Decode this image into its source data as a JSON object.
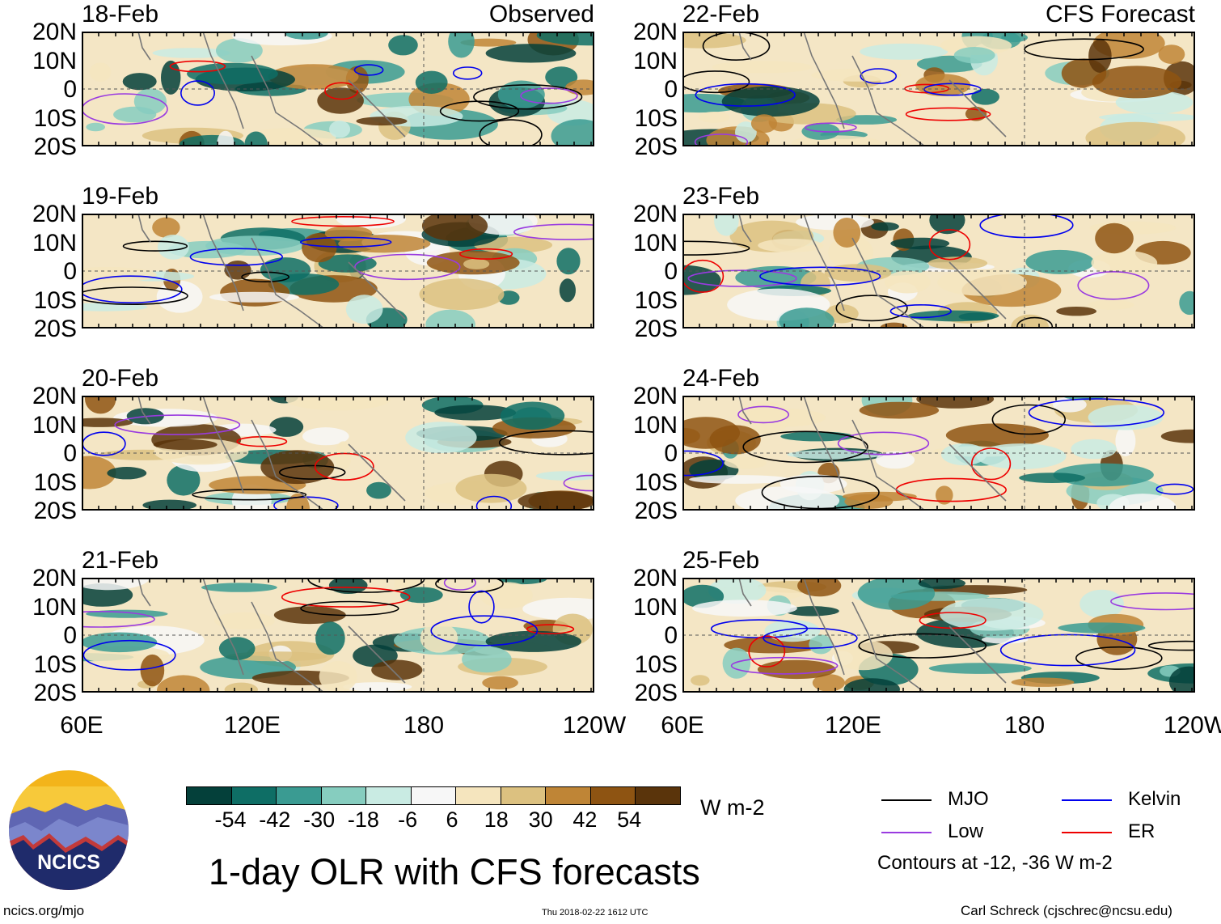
{
  "panels": [
    {
      "date": "18-Feb",
      "tag": "Observed"
    },
    {
      "date": "19-Feb",
      "tag": ""
    },
    {
      "date": "20-Feb",
      "tag": ""
    },
    {
      "date": "21-Feb",
      "tag": ""
    },
    {
      "date": "22-Feb",
      "tag": "CFS Forecast"
    },
    {
      "date": "23-Feb",
      "tag": ""
    },
    {
      "date": "24-Feb",
      "tag": ""
    },
    {
      "date": "25-Feb",
      "tag": ""
    }
  ],
  "y_axis": [
    "20N",
    "10N",
    "0",
    "10S",
    "20S"
  ],
  "x_axis": [
    "60E",
    "120E",
    "180",
    "120W"
  ],
  "colorbar": {
    "colors": [
      "#04403a",
      "#0e6e65",
      "#3a9b92",
      "#86cdbf",
      "#c9ebe3",
      "#f7f7f7",
      "#f5e5be",
      "#dcc180",
      "#bf8536",
      "#8e5412",
      "#5a340b"
    ],
    "labels": [
      "-54",
      "-42",
      "-30",
      "-18",
      "-6",
      "6",
      "18",
      "30",
      "42",
      "54"
    ],
    "units": "W m-2"
  },
  "title": "1-day OLR with CFS forecasts",
  "legend": {
    "items": [
      {
        "label": "MJO",
        "color": "#000000"
      },
      {
        "label": "Kelvin",
        "color": "#0000ee"
      },
      {
        "label": "Low",
        "color": "#9a3be0"
      },
      {
        "label": "ER",
        "color": "#ee0000"
      }
    ],
    "note": "Contours at -12, -36 W m-2"
  },
  "footer": {
    "url": "ncics.org/mjo",
    "timestamp": "Thu 2018-02-22 1612 UTC",
    "credit": "Carl Schreck (cjschrec@ncsu.edu)"
  },
  "logo": {
    "text": "NCICS"
  }
}
